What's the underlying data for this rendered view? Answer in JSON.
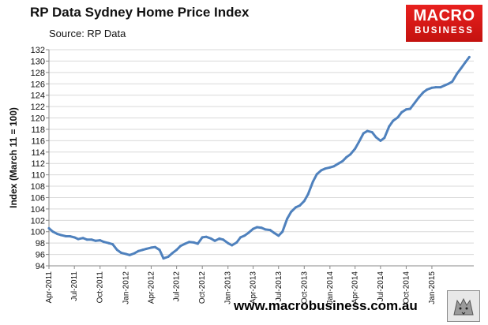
{
  "header": {
    "title": "RP Data Sydney Home Price Index",
    "subtitle": "Source: RP Data"
  },
  "logo": {
    "line1": "MACRO",
    "line2": "BUSINESS"
  },
  "footer": {
    "url": "www.macrobusiness.com.au"
  },
  "colors": {
    "line": "#4f81bd",
    "grid": "#d9d9d9",
    "logo": "#d71a1a"
  },
  "chart_data": {
    "type": "line",
    "title": "RP Data Sydney Home Price Index",
    "subtitle": "Source: RP Data",
    "xlabel": "",
    "ylabel": "Index (March 11 = 100)",
    "ylim": [
      94,
      132
    ],
    "yticks": [
      94,
      96,
      98,
      100,
      102,
      104,
      106,
      108,
      110,
      112,
      114,
      116,
      118,
      120,
      122,
      124,
      126,
      128,
      130,
      132
    ],
    "xlim": [
      "2011-04-01",
      "2015-05-31"
    ],
    "xticks": [
      "Apr-2011",
      "Jul-2011",
      "Oct-2011",
      "Jan-2012",
      "Apr-2012",
      "Jul-2012",
      "Oct-2012",
      "Jan-2013",
      "Apr-2013",
      "Jul-2013",
      "Oct-2013",
      "Jan-2014",
      "Apr-2014",
      "Jul-2014",
      "Oct-2014",
      "Jan-2015"
    ],
    "grid": true,
    "legend": "none",
    "series": [
      {
        "x": [
          "2011-04-01",
          "2011-04-15",
          "2011-05-01",
          "2011-05-15",
          "2011-06-01",
          "2011-06-15",
          "2011-07-01",
          "2011-07-15",
          "2011-08-01",
          "2011-08-15",
          "2011-09-01",
          "2011-09-15",
          "2011-10-01",
          "2011-10-15",
          "2011-11-01",
          "2011-11-15",
          "2011-12-01",
          "2011-12-15",
          "2012-01-01",
          "2012-01-15",
          "2012-02-01",
          "2012-02-15",
          "2012-03-01",
          "2012-03-15",
          "2012-04-01",
          "2012-04-15",
          "2012-05-01",
          "2012-05-15",
          "2012-06-01",
          "2012-06-15",
          "2012-07-01",
          "2012-07-15",
          "2012-08-01",
          "2012-08-15",
          "2012-09-01",
          "2012-09-15",
          "2012-10-01",
          "2012-10-15",
          "2012-11-01",
          "2012-11-15",
          "2012-12-01",
          "2012-12-15",
          "2013-01-01",
          "2013-01-15",
          "2013-02-01",
          "2013-02-15",
          "2013-03-01",
          "2013-03-15",
          "2013-04-01",
          "2013-04-15",
          "2013-05-01",
          "2013-05-15",
          "2013-06-01",
          "2013-06-15",
          "2013-07-01",
          "2013-07-15",
          "2013-08-01",
          "2013-08-15",
          "2013-09-01",
          "2013-09-15",
          "2013-10-01",
          "2013-10-15",
          "2013-11-01",
          "2013-11-15",
          "2013-12-01",
          "2013-12-15",
          "2014-01-01",
          "2014-01-15",
          "2014-02-01",
          "2014-02-15",
          "2014-03-01",
          "2014-03-15",
          "2014-04-01",
          "2014-04-15",
          "2014-05-01",
          "2014-05-15",
          "2014-06-01",
          "2014-06-15",
          "2014-07-01",
          "2014-07-15",
          "2014-08-01",
          "2014-08-15",
          "2014-09-01",
          "2014-09-15",
          "2014-10-01",
          "2014-10-15",
          "2014-11-01",
          "2014-11-15",
          "2014-12-01",
          "2014-12-15",
          "2015-01-01",
          "2015-01-15",
          "2015-02-01",
          "2015-02-15",
          "2015-03-01",
          "2015-03-15",
          "2015-04-01",
          "2015-04-15",
          "2015-05-01",
          "2015-05-15"
        ],
        "y": [
          100.6,
          100.0,
          99.6,
          99.4,
          99.2,
          99.2,
          99.0,
          98.7,
          98.9,
          98.6,
          98.6,
          98.4,
          98.5,
          98.2,
          98.0,
          97.8,
          96.8,
          96.3,
          96.1,
          95.9,
          96.2,
          96.6,
          96.8,
          97.0,
          97.2,
          97.3,
          96.8,
          95.3,
          95.6,
          96.2,
          96.8,
          97.5,
          97.9,
          98.2,
          98.1,
          97.9,
          99.0,
          99.1,
          98.8,
          98.4,
          98.8,
          98.6,
          98.0,
          97.6,
          98.1,
          99.0,
          99.3,
          99.8,
          100.5,
          100.8,
          100.7,
          100.4,
          100.3,
          99.8,
          99.3,
          100.0,
          102.3,
          103.5,
          104.3,
          104.6,
          105.4,
          106.6,
          108.8,
          110.1,
          110.8,
          111.1,
          111.3,
          111.5,
          112.0,
          112.4,
          113.1,
          113.6,
          114.6,
          115.8,
          117.3,
          117.7,
          117.5,
          116.6,
          116.0,
          116.5,
          118.5,
          119.5,
          120.1,
          121.0,
          121.5,
          121.6,
          122.7,
          123.6,
          124.5,
          125.0,
          125.3,
          125.4,
          125.4,
          125.7,
          126.0,
          126.4,
          127.8,
          128.7,
          129.8,
          130.7
        ]
      }
    ]
  }
}
